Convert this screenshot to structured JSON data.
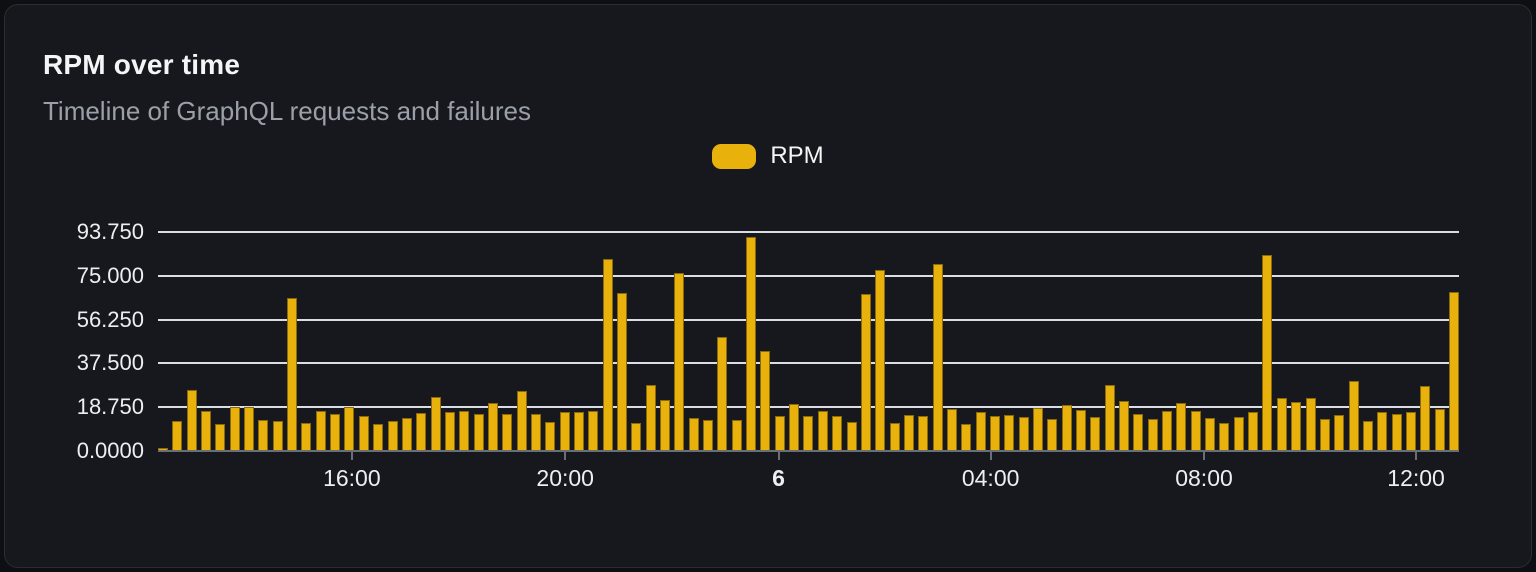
{
  "card": {
    "title": "RPM over time",
    "subtitle": "Timeline of GraphQL requests and failures"
  },
  "legend": {
    "label": "RPM",
    "swatch_color": "#e9b10c"
  },
  "colors": {
    "page_bg": "#0e0f12",
    "card_bg": "#16181d",
    "card_border": "#2a2d35",
    "bar": "#e9b10c",
    "gridline": "#dadde4",
    "axis_line": "#6a6e76",
    "title_text": "#f4f5f7",
    "subtitle_text": "#9ba0a8",
    "tick_label_text": "#edeef1"
  },
  "chart_data": {
    "type": "bar",
    "title": "RPM over time",
    "xlabel": "",
    "ylabel": "",
    "ylim": [
      0,
      93.75
    ],
    "grid": "horizontal",
    "legend_position": "top-center",
    "y_ticks_top_to_bottom": [
      "93.750",
      "75.000",
      "56.250",
      "37.500",
      "18.750",
      "0.0000"
    ],
    "x_ticks": [
      {
        "label": "16:00",
        "pos": 0.149,
        "bold": false
      },
      {
        "label": "20:00",
        "pos": 0.313,
        "bold": false
      },
      {
        "label": "6",
        "pos": 0.477,
        "bold": true
      },
      {
        "label": "04:00",
        "pos": 0.64,
        "bold": false
      },
      {
        "label": "08:00",
        "pos": 0.804,
        "bold": false
      },
      {
        "label": "12:00",
        "pos": 0.967,
        "bold": false
      }
    ],
    "series": [
      {
        "name": "RPM",
        "values": [
          1.3,
          13,
          26,
          17.3,
          11.6,
          18.7,
          18.7,
          13.2,
          13,
          65.3,
          11.9,
          17,
          15.9,
          19,
          15.2,
          11.4,
          12.8,
          14.2,
          16.3,
          23.1,
          16.8,
          17,
          15.9,
          20.6,
          15.9,
          25.6,
          15.9,
          12.5,
          16.8,
          16.8,
          17,
          82,
          67.5,
          12.1,
          28.4,
          21.7,
          76.3,
          14.2,
          13.1,
          48.6,
          13.1,
          91.5,
          42.9,
          15.2,
          20.2,
          15.2,
          17.3,
          14.9,
          12.4,
          67.4,
          77.4,
          11.8,
          15.6,
          14.9,
          80.1,
          17.8,
          11.4,
          16.8,
          14.9,
          15.6,
          14.5,
          18.5,
          13.9,
          19.5,
          17.5,
          14.6,
          28.4,
          21.6,
          15.9,
          13.5,
          17,
          20.6,
          17,
          14.2,
          12.1,
          14.5,
          16.6,
          83.8,
          22.7,
          20.9,
          22.7,
          13.8,
          15.6,
          29.8,
          12.8,
          16.6,
          15.9,
          16.5,
          27.7,
          18.2,
          68
        ]
      }
    ]
  }
}
